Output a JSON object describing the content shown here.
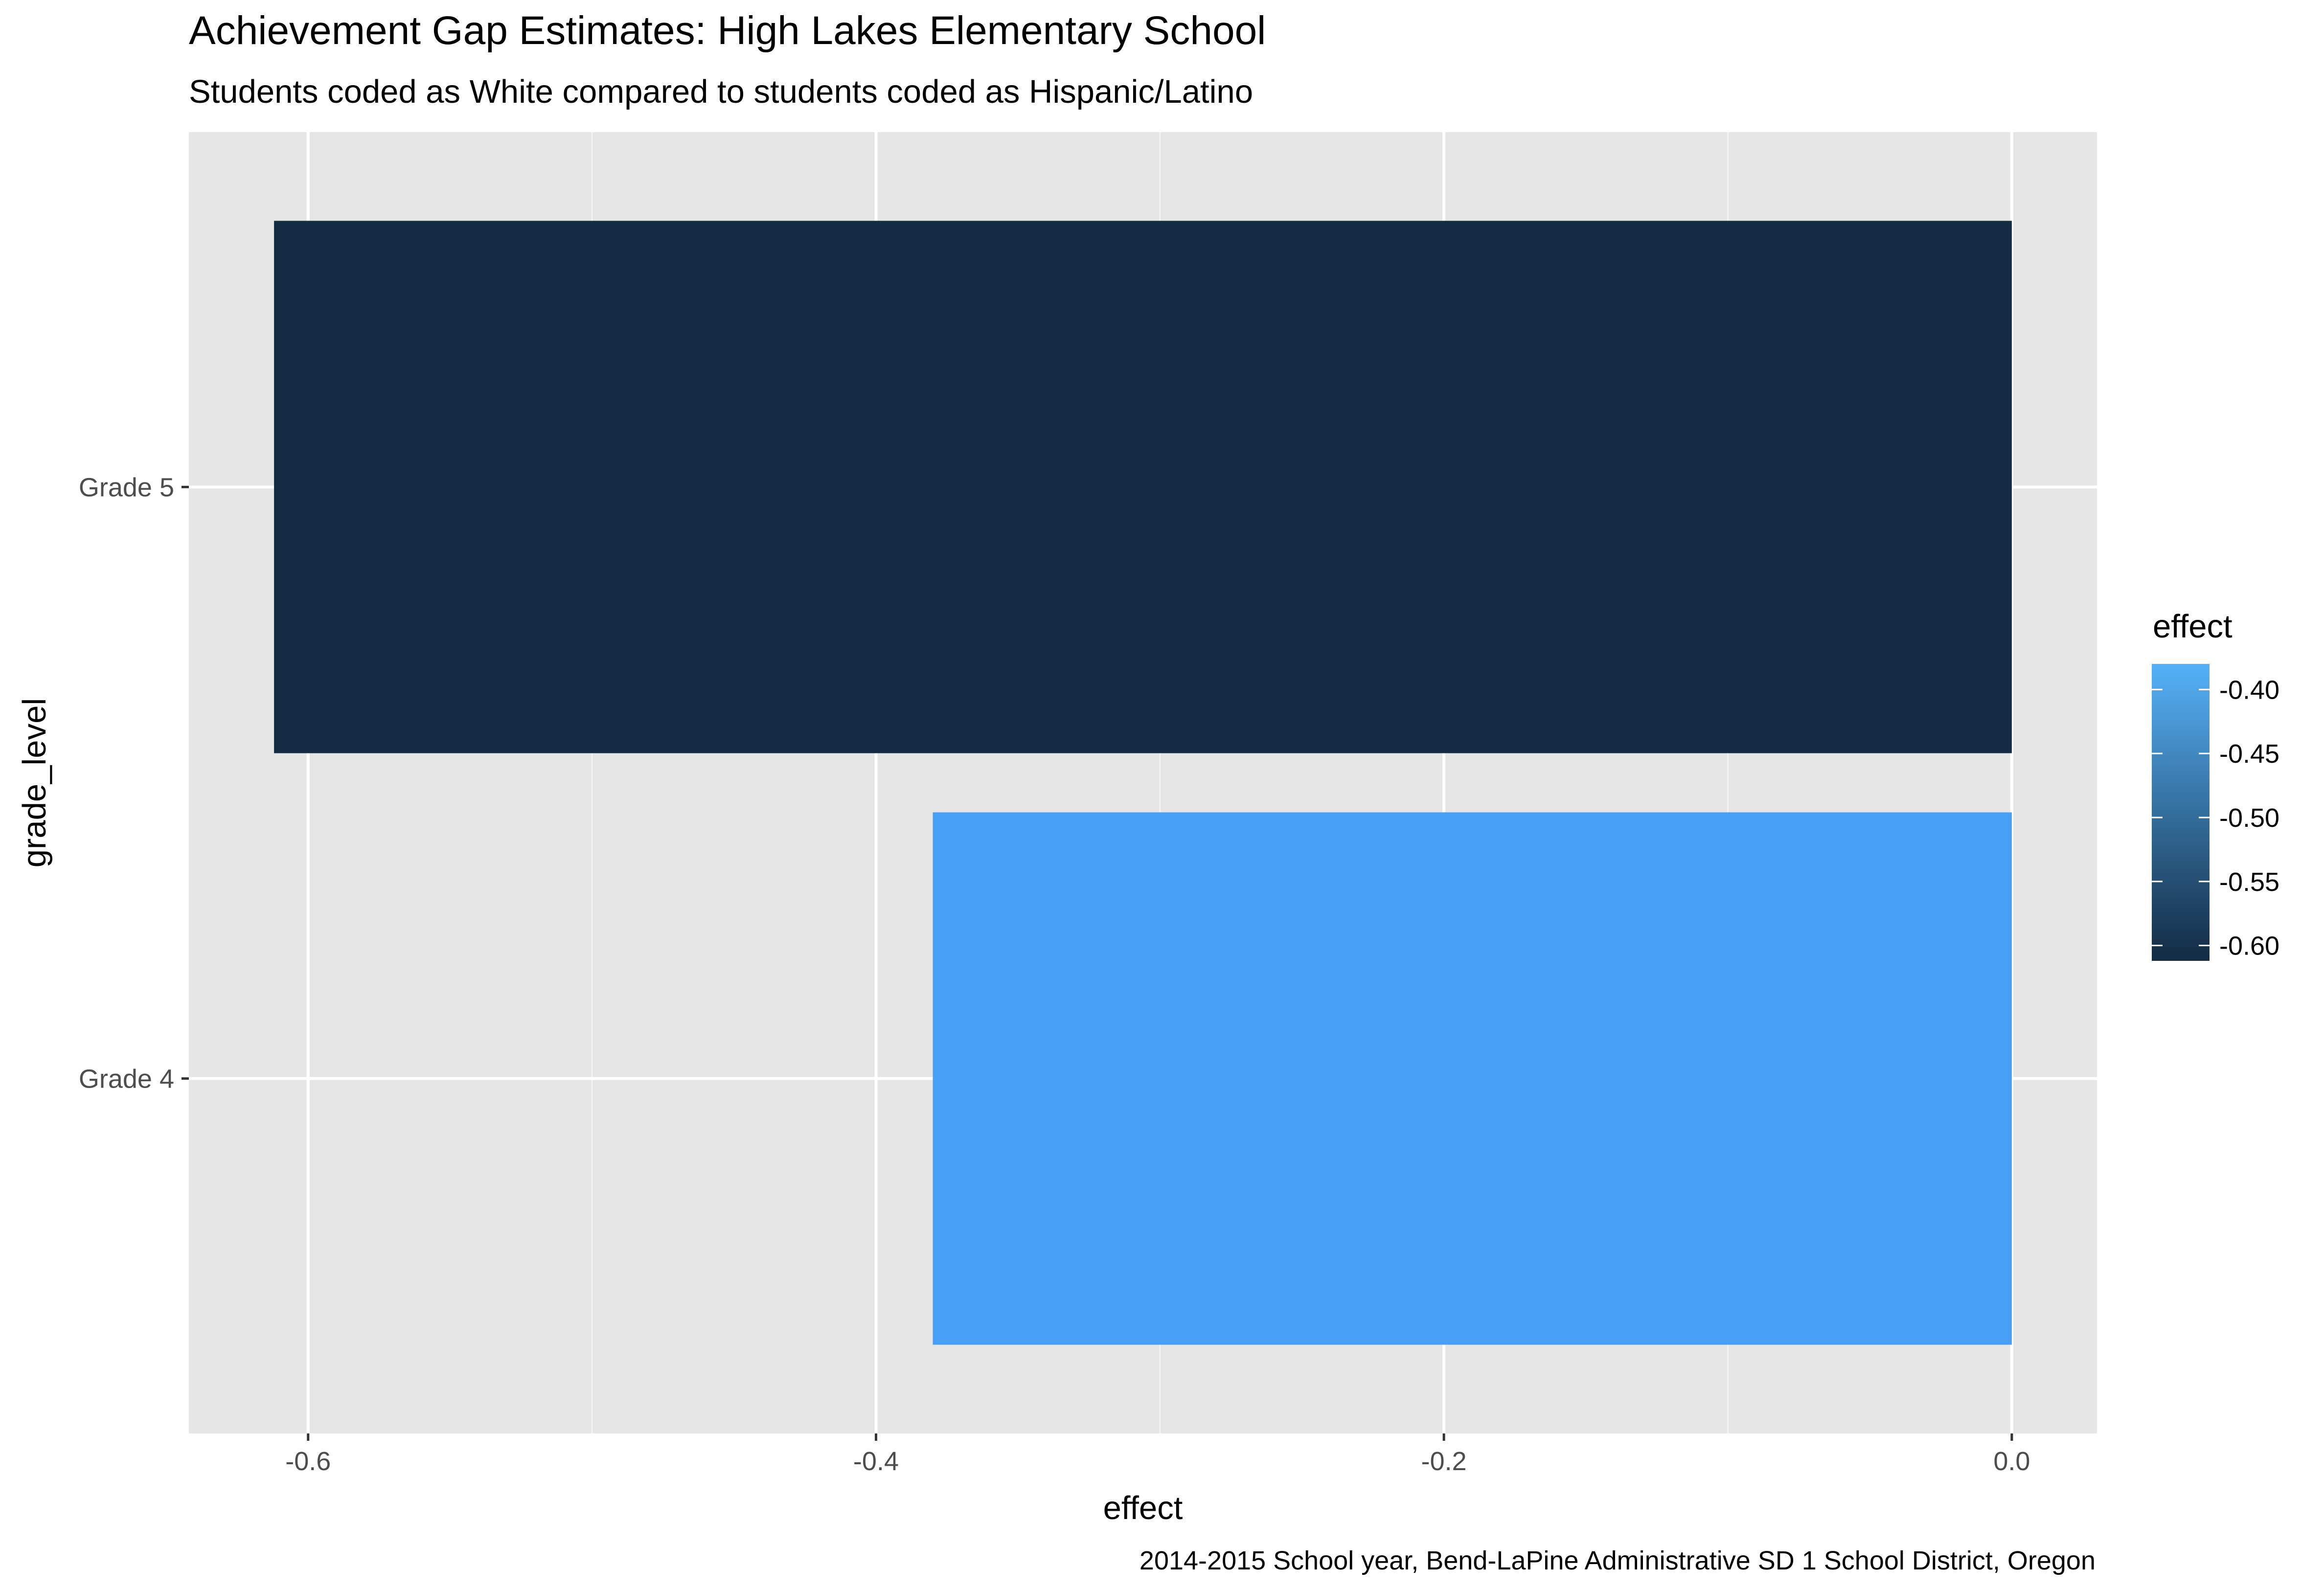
{
  "chart_data": {
    "type": "bar",
    "orientation": "horizontal",
    "title": "Achievement Gap Estimates: High Lakes Elementary School",
    "subtitle": "Students coded as White compared to students coded as Hispanic/Latino",
    "caption": "2014-2015 School year, Bend-LaPine Administrative SD 1 School District, Oregon",
    "xlabel": "effect",
    "ylabel": "grade_level",
    "categories": [
      "Grade 4",
      "Grade 5"
    ],
    "values": [
      -0.38,
      -0.612
    ],
    "xlim": [
      -0.642,
      0.03
    ],
    "x_ticks": [
      -0.6,
      -0.4,
      -0.2,
      0.0
    ],
    "x_tick_labels": [
      "-0.6",
      "-0.4",
      "-0.2",
      "0.0"
    ],
    "grid": true,
    "legend": {
      "title": "effect",
      "placement": "right",
      "type": "colorbar",
      "range": [
        -0.612,
        -0.38
      ],
      "ticks": [
        -0.6,
        -0.55,
        -0.5,
        -0.45,
        -0.4
      ],
      "tick_labels": [
        "-0.60",
        "-0.55",
        "-0.50",
        "-0.45",
        "-0.40"
      ],
      "color_low": "#132B43",
      "color_high": "#56B1F7"
    },
    "colors": {
      "panel_background": "#E5E5E5",
      "grid_major": "#FFFFFF",
      "grid_minor": "#F2F2F2",
      "bar_low": "#132B43",
      "bar_high": "#489FF5"
    }
  }
}
